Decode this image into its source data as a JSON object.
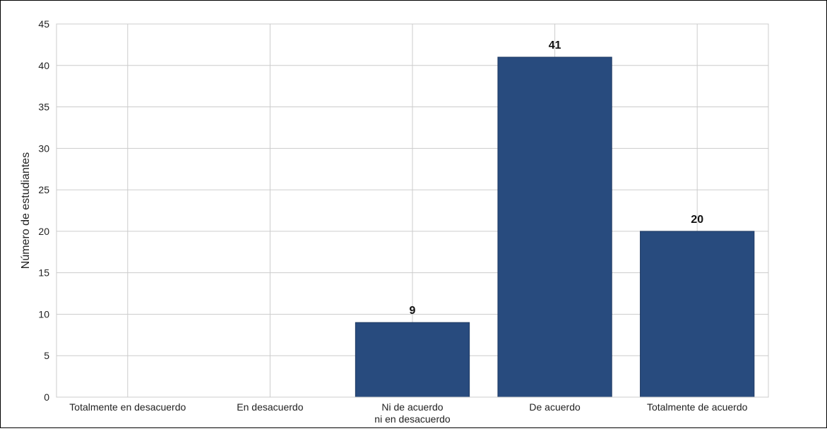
{
  "chart_data": {
    "type": "bar",
    "categories": [
      "Totalmente en desacuerdo",
      "En desacuerdo",
      "Ni de acuerdo\nni en desacuerdo",
      "De acuerdo",
      "Totalmente de acuerdo"
    ],
    "values": [
      0,
      0,
      9,
      41,
      20
    ],
    "data_labels": [
      "",
      "",
      "9",
      "41",
      "20"
    ],
    "title": "",
    "xlabel": "",
    "ylabel": "Número de estudiantes",
    "ylim": [
      0,
      45
    ],
    "yticks": [
      0,
      5,
      10,
      15,
      20,
      25,
      30,
      35,
      40,
      45
    ],
    "grid": true,
    "legend": "none",
    "colors": {
      "bar": "#284b7e",
      "bar_edge": "#1f3a63",
      "grid": "#cccccc",
      "text": "#222222"
    }
  }
}
